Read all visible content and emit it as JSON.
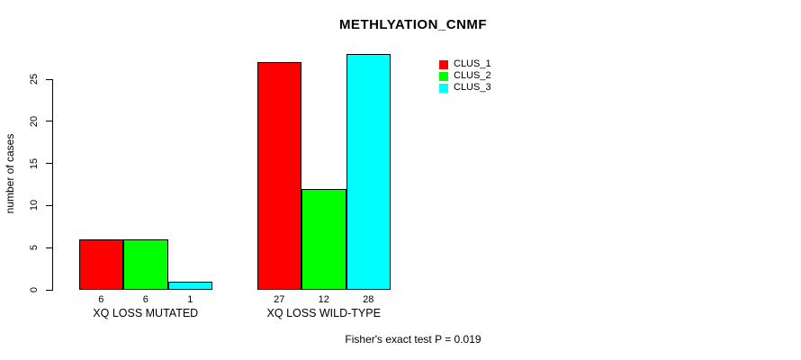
{
  "chart_data": {
    "type": "bar",
    "title": "METHLYATION_CNMF",
    "xlabel": "",
    "ylabel": "number of cases",
    "categories": [
      "XQ LOSS MUTATED",
      "XQ LOSS WILD-TYPE"
    ],
    "series": [
      {
        "name": "CLUS_1",
        "color": "#ff0000",
        "values": [
          6,
          27
        ]
      },
      {
        "name": "CLUS_2",
        "color": "#00ff00",
        "values": [
          6,
          12
        ]
      },
      {
        "name": "CLUS_3",
        "color": "#00ffff",
        "values": [
          1,
          28
        ]
      }
    ],
    "bar_value_labels": [
      [
        6,
        6,
        1
      ],
      [
        27,
        12,
        28
      ]
    ],
    "ylim": [
      0,
      25
    ],
    "yticks": [
      0,
      5,
      10,
      15,
      20,
      25
    ],
    "grid": false,
    "legend_position": "top-right",
    "legend_entries": [
      "CLUS_1",
      "CLUS_2",
      "CLUS_3"
    ],
    "annotation": "Fisher's exact test P = 0.019"
  }
}
